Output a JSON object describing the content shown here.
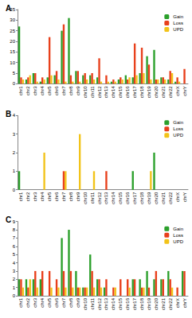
{
  "chart_data": [
    {
      "type": "bar",
      "title": "A",
      "categories": [
        "chr1",
        "chr2",
        "chr3",
        "chr4",
        "chr5",
        "chr6",
        "chr7",
        "chr8",
        "chr9",
        "chr10",
        "chr11",
        "chr12",
        "chr13",
        "chr14",
        "chr15",
        "chr16",
        "chr17",
        "chr18",
        "chr19",
        "chr20",
        "chr21",
        "chr22",
        "chrX",
        "chrY"
      ],
      "series": [
        {
          "name": "Gain",
          "color": "#2ca02c",
          "values": [
            27,
            2,
            5,
            1,
            3,
            4,
            25,
            31,
            6,
            4,
            4,
            3,
            0,
            1,
            2,
            4,
            3,
            5,
            13,
            16,
            3,
            2,
            1,
            0
          ]
        },
        {
          "name": "Loss",
          "color": "#e8401c",
          "values": [
            3,
            3,
            5,
            3,
            22,
            6,
            28,
            4,
            6,
            5,
            5,
            12,
            4,
            2,
            3,
            2,
            19,
            17,
            9,
            2,
            3,
            6,
            3,
            7
          ]
        },
        {
          "name": "UPD",
          "color": "#f2c319",
          "values": [
            2,
            4,
            1,
            2,
            4,
            2,
            1,
            1,
            1,
            2,
            2,
            1,
            1,
            1,
            2,
            3,
            4,
            5,
            2,
            2,
            2,
            5,
            1,
            0
          ]
        }
      ],
      "ylim": [
        0,
        35
      ],
      "yticks": [
        0,
        5,
        10,
        15,
        20,
        25,
        30,
        35
      ],
      "grid": false,
      "legend": "upper right"
    },
    {
      "type": "bar",
      "title": "B",
      "categories": [
        "chr1",
        "chr2",
        "chr3",
        "chr4",
        "chr5",
        "chr6",
        "chr7",
        "chr8",
        "chr9",
        "chr10",
        "chr11",
        "chr12",
        "chr13",
        "chr14",
        "chr15",
        "chr16",
        "chr17",
        "chr18",
        "chr19",
        "chr20",
        "chr21",
        "chr22",
        "chrX",
        "chrY"
      ],
      "series": [
        {
          "name": "Gain",
          "color": "#2ca02c",
          "values": [
            1,
            0,
            0,
            0,
            0,
            0,
            0,
            0,
            0,
            0,
            0,
            0,
            0,
            0,
            0,
            0,
            1,
            0,
            0,
            2,
            0,
            0,
            0,
            0
          ]
        },
        {
          "name": "Loss",
          "color": "#e8401c",
          "values": [
            0,
            0,
            0,
            0,
            0,
            0,
            1,
            0,
            0,
            0,
            0,
            0,
            1,
            0,
            0,
            0,
            0,
            0,
            0,
            0,
            0,
            0,
            0,
            0
          ]
        },
        {
          "name": "UPD",
          "color": "#f2c319",
          "values": [
            0,
            0,
            0,
            2,
            0,
            0,
            1,
            0,
            3,
            0,
            1,
            0,
            0,
            0,
            0,
            0,
            0,
            0,
            1,
            0,
            0,
            0,
            0,
            0
          ]
        }
      ],
      "ylim": [
        0,
        4
      ],
      "yticks": [
        0,
        1,
        2,
        3,
        4
      ],
      "grid": false,
      "legend": "upper right"
    },
    {
      "type": "bar",
      "title": "C",
      "categories": [
        "chr1",
        "chr2",
        "chr3",
        "chr4",
        "chr5",
        "chr6",
        "chr7",
        "chr8",
        "chr9",
        "chr10",
        "chr11",
        "chr12",
        "chr13",
        "chr14",
        "chr15",
        "chr16",
        "chr17",
        "chr18",
        "chr19",
        "chr20",
        "chr21",
        "chr22",
        "chrX",
        "chrY"
      ],
      "series": [
        {
          "name": "Gain",
          "color": "#2ca02c",
          "values": [
            2,
            2,
            2,
            2,
            0,
            0,
            7,
            8,
            3,
            1,
            5,
            2,
            1,
            0,
            0,
            0,
            2,
            2,
            3,
            2,
            2,
            3,
            0,
            3
          ]
        },
        {
          "name": "Loss",
          "color": "#e8401c",
          "values": [
            2,
            1,
            3,
            3,
            3,
            2,
            3,
            3,
            1,
            1,
            3,
            2,
            2,
            1,
            2,
            2,
            2,
            1,
            1,
            3,
            2,
            2,
            1,
            3
          ]
        },
        {
          "name": "UPD",
          "color": "#f2c319",
          "values": [
            1,
            2,
            1,
            0,
            1,
            1,
            1,
            1,
            1,
            1,
            1,
            1,
            0,
            1,
            0,
            1,
            0,
            1,
            0,
            0,
            0,
            1,
            0,
            0
          ]
        }
      ],
      "ylim": [
        0,
        9
      ],
      "yticks": [
        0,
        1,
        2,
        3,
        4,
        5,
        6,
        7,
        8,
        9
      ],
      "grid": false,
      "legend": "upper right"
    }
  ]
}
